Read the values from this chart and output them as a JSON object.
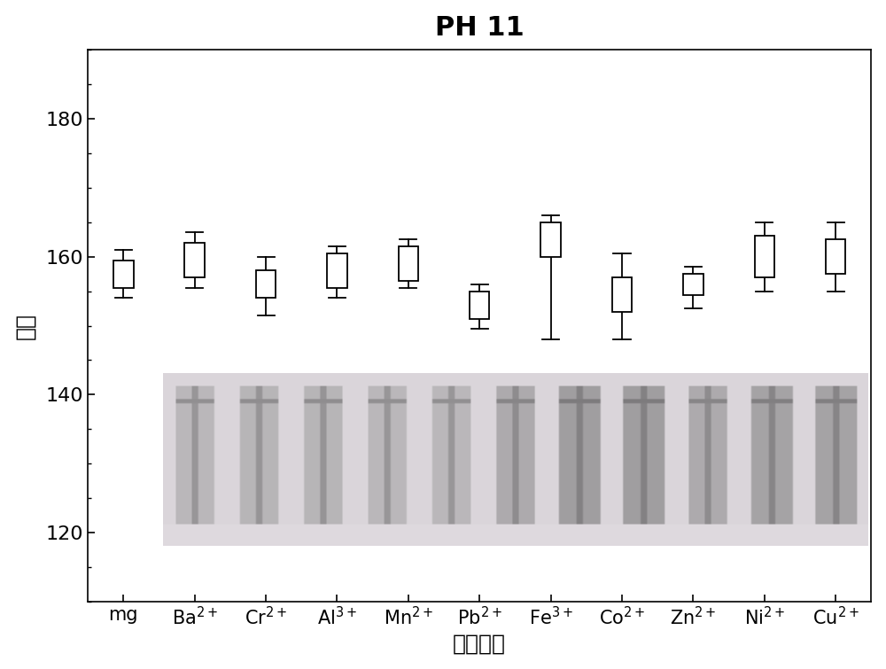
{
  "title": "PH 11",
  "xlabel": "金属离子",
  "ylabel": "半径",
  "xlim": [
    -0.5,
    10.5
  ],
  "ylim": [
    110,
    190
  ],
  "yticks": [
    120,
    140,
    160,
    180
  ],
  "categories": [
    "mg",
    "Ba$^{2+}$",
    "Cr$^{2+}$",
    "Al$^{3+}$",
    "Mn$^{2+}$",
    "Pb$^{2+}$",
    "Fe$^{3+}$",
    "Co$^{2+}$",
    "Zn$^{2+}$",
    "Ni$^{2+}$",
    "Cu$^{2+}$"
  ],
  "centers": [
    157.5,
    159.5,
    156.0,
    158.0,
    159.0,
    153.0,
    162.5,
    154.5,
    156.0,
    160.0,
    160.0
  ],
  "box_half_height": [
    2.0,
    2.5,
    2.0,
    2.5,
    2.5,
    2.0,
    2.5,
    2.5,
    1.5,
    3.0,
    2.5
  ],
  "whisker_upper": [
    161.0,
    163.5,
    160.0,
    161.5,
    162.5,
    156.0,
    166.0,
    160.5,
    158.5,
    165.0,
    165.0
  ],
  "whisker_lower": [
    154.0,
    155.5,
    151.5,
    154.0,
    155.5,
    149.5,
    148.0,
    148.0,
    152.5,
    155.0,
    155.0
  ],
  "box_color": "white",
  "box_edgecolor": "black",
  "line_color": "black",
  "background_color": "white",
  "img_ymin": 118,
  "img_ymax": 143,
  "img_xmin": 0.55,
  "img_xmax": 10.45,
  "title_fontsize": 22,
  "title_fontweight": "bold",
  "axis_label_fontsize": 18,
  "tick_fontsize": 16,
  "box_width": 0.28
}
